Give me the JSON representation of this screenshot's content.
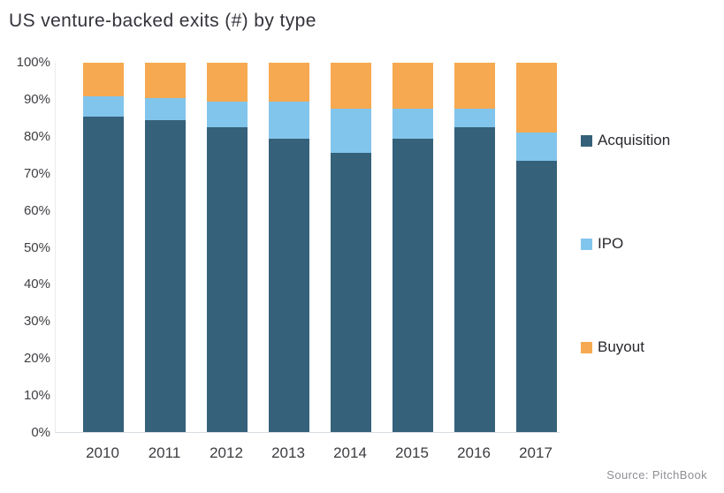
{
  "title": "US venture-backed exits (#) by type",
  "source": "Source: PitchBook",
  "colors": {
    "acquisition": "#35617B",
    "ipo": "#82C5EC",
    "buyout": "#F6A950",
    "axis_line": "#D8DDE2",
    "tick_text": "#3F3F44",
    "title_text": "#33333B",
    "source_text": "#8E8E94"
  },
  "chart_data": {
    "type": "bar",
    "stacked": true,
    "normalized_percent": true,
    "title": "US venture-backed exits (#) by type",
    "categories": [
      "2010",
      "2011",
      "2012",
      "2013",
      "2014",
      "2015",
      "2016",
      "2017"
    ],
    "series": [
      {
        "name": "Acquisition",
        "color": "#35617B",
        "values": [
          85.5,
          84.5,
          82.5,
          79.5,
          75.5,
          79.5,
          82.5,
          73.5
        ]
      },
      {
        "name": "IPO",
        "color": "#82C5EC",
        "values": [
          5.5,
          6.0,
          7.0,
          10.0,
          12.0,
          8.0,
          5.0,
          7.5
        ]
      },
      {
        "name": "Buyout",
        "color": "#F6A950",
        "values": [
          9.0,
          9.5,
          10.5,
          10.5,
          12.5,
          12.5,
          12.5,
          19.0
        ]
      }
    ],
    "xlabel": "",
    "ylabel": "",
    "ylim": [
      0,
      100
    ],
    "y_ticks": [
      "100%",
      "90%",
      "80%",
      "70%",
      "60%",
      "50%",
      "40%",
      "30%",
      "20%",
      "10%",
      "0%"
    ],
    "grid": false,
    "legend_position": "right"
  }
}
